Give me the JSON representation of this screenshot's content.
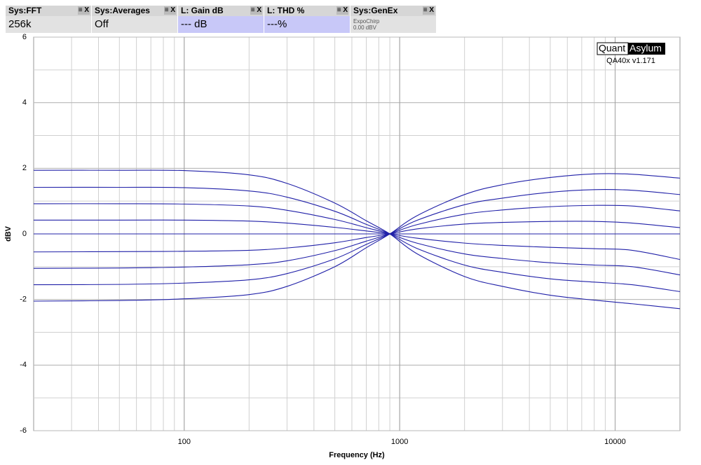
{
  "panels": [
    {
      "title": "Sys:FFT",
      "value": "256k"
    },
    {
      "title": "Sys:Averages",
      "value": "Off"
    },
    {
      "title": "L: Gain dB",
      "value": "--- dB"
    },
    {
      "title": "L: THD %",
      "value": "---%"
    },
    {
      "title": "Sys:GenEx",
      "value": "ExpoChirp",
      "detail": "0.00 dBV"
    }
  ],
  "logo": {
    "left": "Quant",
    "right": "Asylum",
    "version": "QA40x v1.171"
  },
  "chart_data": {
    "type": "line",
    "xlabel": "Frequency (Hz)",
    "ylabel": "dBV",
    "xscale": "log",
    "xlim": [
      20,
      20000
    ],
    "xticks": [
      100,
      1000,
      10000
    ],
    "ylim": [
      -6,
      6
    ],
    "yticks": [
      -6,
      -4,
      -2,
      0,
      2,
      4,
      6
    ],
    "grid": true,
    "x": [
      20,
      50,
      100,
      200,
      300,
      500,
      700,
      900,
      1200,
      2000,
      3000,
      5000,
      8000,
      12000,
      20000
    ],
    "series": [
      {
        "color": "#2020a8",
        "values": [
          1.94,
          1.94,
          1.93,
          1.8,
          1.54,
          0.94,
          0.4,
          0,
          -0.6,
          -1.3,
          -1.6,
          -1.87,
          -2.02,
          -2.13,
          -2.28
        ]
      },
      {
        "color": "#2020a8",
        "values": [
          1.42,
          1.42,
          1.41,
          1.31,
          1.12,
          0.69,
          0.29,
          0,
          -0.44,
          -0.95,
          -1.17,
          -1.37,
          -1.47,
          -1.55,
          -1.76
        ]
      },
      {
        "color": "#2020a8",
        "values": [
          0.92,
          0.92,
          0.91,
          0.85,
          0.72,
          0.44,
          0.19,
          0,
          -0.28,
          -0.61,
          -0.75,
          -0.88,
          -0.95,
          -1.0,
          -1.25
        ]
      },
      {
        "color": "#2020a8",
        "values": [
          0.42,
          0.42,
          0.42,
          0.39,
          0.33,
          0.2,
          0.09,
          0,
          -0.13,
          -0.28,
          -0.35,
          -0.41,
          -0.45,
          -0.5,
          -0.78
        ]
      },
      {
        "color": "#2020a8",
        "values": [
          0,
          0,
          0,
          0,
          0,
          0,
          0,
          0,
          0,
          0,
          0,
          0,
          0,
          0,
          0
        ]
      },
      {
        "color": "#2020a8",
        "values": [
          -0.55,
          -0.54,
          -0.53,
          -0.5,
          -0.43,
          -0.27,
          -0.11,
          0,
          0.15,
          0.3,
          0.35,
          0.38,
          0.38,
          0.33,
          0.19
        ]
      },
      {
        "color": "#2020a8",
        "values": [
          -1.05,
          -1.04,
          -1.01,
          -0.94,
          -0.82,
          -0.51,
          -0.22,
          0,
          0.28,
          0.6,
          0.73,
          0.83,
          0.87,
          0.85,
          0.7
        ]
      },
      {
        "color": "#2020a8",
        "values": [
          -1.55,
          -1.54,
          -1.5,
          -1.4,
          -1.21,
          -0.76,
          -0.32,
          0,
          0.41,
          0.89,
          1.09,
          1.27,
          1.35,
          1.33,
          1.2
        ]
      },
      {
        "color": "#2020a8",
        "values": [
          -2.05,
          -2.03,
          -1.98,
          -1.85,
          -1.6,
          -1.0,
          -0.42,
          0,
          0.55,
          1.2,
          1.5,
          1.72,
          1.83,
          1.82,
          1.7
        ]
      }
    ]
  }
}
